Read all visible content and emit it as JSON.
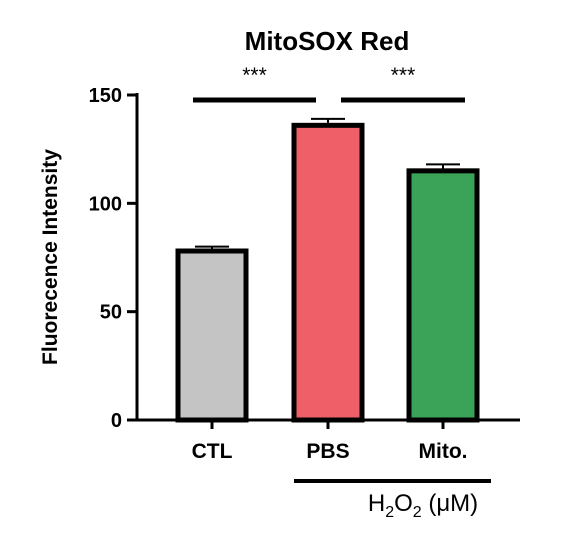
{
  "chart_data": {
    "type": "bar",
    "title": "MitoSOX Red",
    "ylabel": "Fluorecence Intensity",
    "xlabel": "",
    "ylim": [
      0,
      150
    ],
    "yticks": [
      "0",
      "50",
      "100",
      "150"
    ],
    "categories": [
      "CTL",
      "PBS",
      "Mito."
    ],
    "values": [
      78,
      136,
      115
    ],
    "errors": [
      2,
      3,
      3
    ],
    "colors": [
      "#c4c4c4",
      "#ef5f68",
      "#3aa358"
    ],
    "significance": [
      {
        "from": "CTL",
        "to": "PBS",
        "label": "***"
      },
      {
        "from": "PBS",
        "to": "Mito.",
        "label": "***"
      }
    ],
    "group_label": {
      "text_main": "H",
      "sub1": "2",
      "text_mid": "O",
      "sub2": "2",
      "text_end": " (μM)",
      "spans": [
        "PBS",
        "Mito."
      ]
    },
    "grid": false
  }
}
